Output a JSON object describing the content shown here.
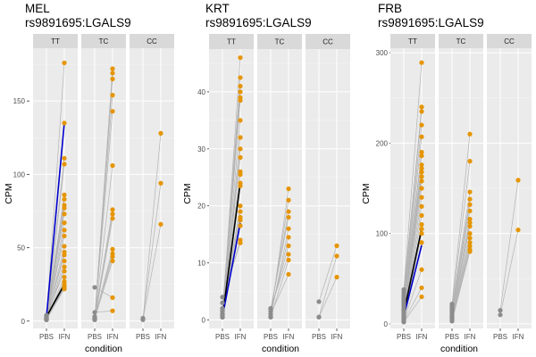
{
  "colors": {
    "panel_bg": "#ebebeb",
    "grid_major": "#ffffff",
    "grid_minor": "#f5f5f5",
    "strip_bg": "#d9d9d9",
    "pbs_point": "#8c8c8c",
    "ifn_point": "#e69500",
    "connector": "#b3b3b3",
    "highlight_blue": "#0000cc",
    "highlight_black": "#000000"
  },
  "chart_data": [
    {
      "type": "scatter",
      "title": "MEL",
      "subtitle": "rs9891695:LGALS9",
      "xlabel": "condition",
      "ylabel": "CPM",
      "categories": [
        "PBS",
        "IFN"
      ],
      "ylim": [
        -5,
        186
      ],
      "yticks": [
        0,
        50,
        100,
        150
      ],
      "facets": [
        {
          "label": "TT",
          "pairs": [
            [
              1,
              176
            ],
            [
              1,
              135
            ],
            [
              2,
              111
            ],
            [
              1,
              107
            ],
            [
              3,
              86
            ],
            [
              2,
              83
            ],
            [
              2,
              79
            ],
            [
              1,
              77
            ],
            [
              3,
              73
            ],
            [
              2,
              67
            ],
            [
              1,
              62
            ],
            [
              2,
              58
            ],
            [
              1,
              51
            ],
            [
              2,
              47
            ],
            [
              3,
              45
            ],
            [
              1,
              41
            ],
            [
              2,
              37
            ],
            [
              4,
              34
            ],
            [
              2,
              30
            ],
            [
              3,
              27
            ],
            [
              1,
              25
            ],
            [
              2,
              24
            ],
            [
              2,
              23
            ],
            [
              3,
              22
            ],
            [
              1,
              22
            ]
          ],
          "highlight": [
            {
              "color": "blue",
              "pbs": 3,
              "ifn": 135
            },
            {
              "color": "black",
              "pbs": 3,
              "ifn": 25
            }
          ]
        },
        {
          "label": "TC",
          "pairs": [
            [
              1,
              172
            ],
            [
              2,
              169
            ],
            [
              1,
              165
            ],
            [
              3,
              154
            ],
            [
              2,
              143
            ],
            [
              2,
              106
            ],
            [
              3,
              76
            ],
            [
              2,
              73
            ],
            [
              1,
              70
            ],
            [
              2,
              49
            ],
            [
              3,
              46
            ],
            [
              1,
              44
            ],
            [
              2,
              41
            ],
            [
              23,
              16
            ],
            [
              6,
              7
            ]
          ]
        },
        {
          "label": "CC",
          "pairs": [
            [
              1,
              128
            ],
            [
              2,
              94
            ],
            [
              1,
              66
            ]
          ]
        }
      ]
    },
    {
      "type": "scatter",
      "title": "KRT",
      "subtitle": "rs9891695:LGALS9",
      "xlabel": "condition",
      "ylabel": "CPM",
      "categories": [
        "PBS",
        "IFN"
      ],
      "ylim": [
        -1.5,
        47.5
      ],
      "yticks": [
        0,
        10,
        20,
        30,
        40
      ],
      "facets": [
        {
          "label": "TT",
          "pairs": [
            [
              0.5,
              46
            ],
            [
              1,
              42.5
            ],
            [
              1,
              41
            ],
            [
              1.5,
              40
            ],
            [
              0.5,
              39
            ],
            [
              2,
              38.5
            ],
            [
              1,
              35
            ],
            [
              0.5,
              32
            ],
            [
              1,
              30
            ],
            [
              1.5,
              28.5
            ],
            [
              0.5,
              26
            ],
            [
              2,
              25.5
            ],
            [
              1,
              24
            ],
            [
              0.5,
              23.5
            ],
            [
              1.5,
              20
            ],
            [
              1,
              19
            ],
            [
              2,
              18
            ],
            [
              0.5,
              17.5
            ],
            [
              1,
              16.5
            ],
            [
              3,
              14
            ],
            [
              4,
              13.5
            ]
          ],
          "highlight": [
            {
              "color": "black",
              "pbs": 0.5,
              "ifn": 24
            },
            {
              "color": "blue",
              "pbs": 0.5,
              "ifn": 17
            }
          ]
        },
        {
          "label": "TC",
          "pairs": [
            [
              0.5,
              23
            ],
            [
              1,
              21
            ],
            [
              1.5,
              19
            ],
            [
              2,
              18
            ],
            [
              0.5,
              16
            ],
            [
              1,
              14.5
            ],
            [
              1.5,
              13
            ],
            [
              2,
              11.5
            ],
            [
              0.5,
              10.5
            ],
            [
              1,
              8
            ]
          ]
        },
        {
          "label": "CC",
          "pairs": [
            [
              3.2,
              13
            ],
            [
              0.5,
              11.2
            ],
            [
              0.5,
              7.5
            ]
          ]
        }
      ]
    },
    {
      "type": "scatter",
      "title": "FRB",
      "subtitle": "rs9891695:LGALS9",
      "xlabel": "condition",
      "ylabel": "CPM",
      "categories": [
        "PBS",
        "IFN"
      ],
      "ylim": [
        -5,
        305
      ],
      "yticks": [
        0,
        100,
        200,
        300
      ],
      "facets": [
        {
          "label": "TT",
          "pairs": [
            [
              38,
              289
            ],
            [
              35,
              240
            ],
            [
              32,
              235
            ],
            [
              30,
              220
            ],
            [
              28,
              207
            ],
            [
              26,
              190
            ],
            [
              24,
              186
            ],
            [
              22,
              176
            ],
            [
              20,
              172
            ],
            [
              18,
              168
            ],
            [
              16,
              163
            ],
            [
              15,
              158
            ],
            [
              14,
              150
            ],
            [
              12,
              140
            ],
            [
              10,
              130
            ],
            [
              9,
              120
            ],
            [
              8,
              110
            ],
            [
              7,
              105
            ],
            [
              6,
              100
            ],
            [
              5,
              90
            ],
            [
              4,
              60
            ],
            [
              3,
              40
            ],
            [
              2,
              30
            ]
          ],
          "highlight": [
            {
              "color": "black",
              "pbs": 12,
              "ifn": 105
            },
            {
              "color": "blue",
              "pbs": 8,
              "ifn": 87
            }
          ]
        },
        {
          "label": "TC",
          "pairs": [
            [
              22,
              210
            ],
            [
              20,
              180
            ],
            [
              18,
              146
            ],
            [
              16,
              138
            ],
            [
              15,
              132
            ],
            [
              14,
              125
            ],
            [
              12,
              116
            ],
            [
              10,
              112
            ],
            [
              9,
              108
            ],
            [
              8,
              100
            ],
            [
              7,
              95
            ],
            [
              6,
              90
            ],
            [
              5,
              86
            ],
            [
              4,
              82
            ],
            [
              3,
              80
            ]
          ]
        },
        {
          "label": "CC",
          "pairs": [
            [
              15,
              159
            ],
            [
              10,
              104
            ]
          ]
        }
      ]
    }
  ]
}
